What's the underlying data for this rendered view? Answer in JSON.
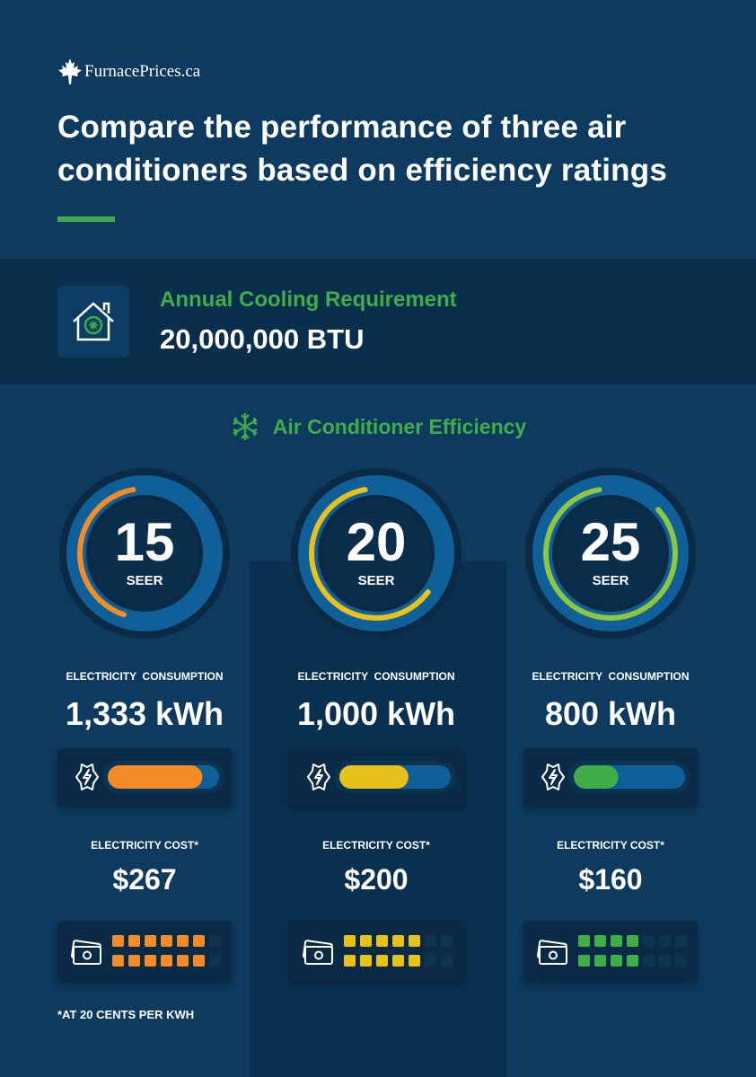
{
  "logo": "FurnacePrices.ca",
  "title_lines": [
    "Compare the performance of three air",
    "conditioners based on efficiency ratings"
  ],
  "requirement": {
    "label": "Annual Cooling Requirement",
    "value": "20,000,000 BTU"
  },
  "section_title": "Air Conditioner Efficiency",
  "units": [
    {
      "seer": "15",
      "seer_label": "SEER",
      "consumption_label": "ELECTRICITY  CONSUMPTION",
      "consumption": "1,333 kWh",
      "cost_label": "ELECTRICITY COST*",
      "cost": "$267"
    },
    {
      "seer": "20",
      "seer_label": "SEER",
      "consumption_label": "ELECTRICITY  CONSUMPTION",
      "consumption": "1,000 kWh",
      "cost_label": "ELECTRICITY COST*",
      "cost": "$200"
    },
    {
      "seer": "25",
      "seer_label": "SEER",
      "consumption_label": "ELECTRICITY  CONSUMPTION",
      "consumption": "800 kWh",
      "cost_label": "ELECTRICITY COST*",
      "cost": "$160"
    }
  ],
  "footnote": "*AT 20 CENTS PER KWH"
}
